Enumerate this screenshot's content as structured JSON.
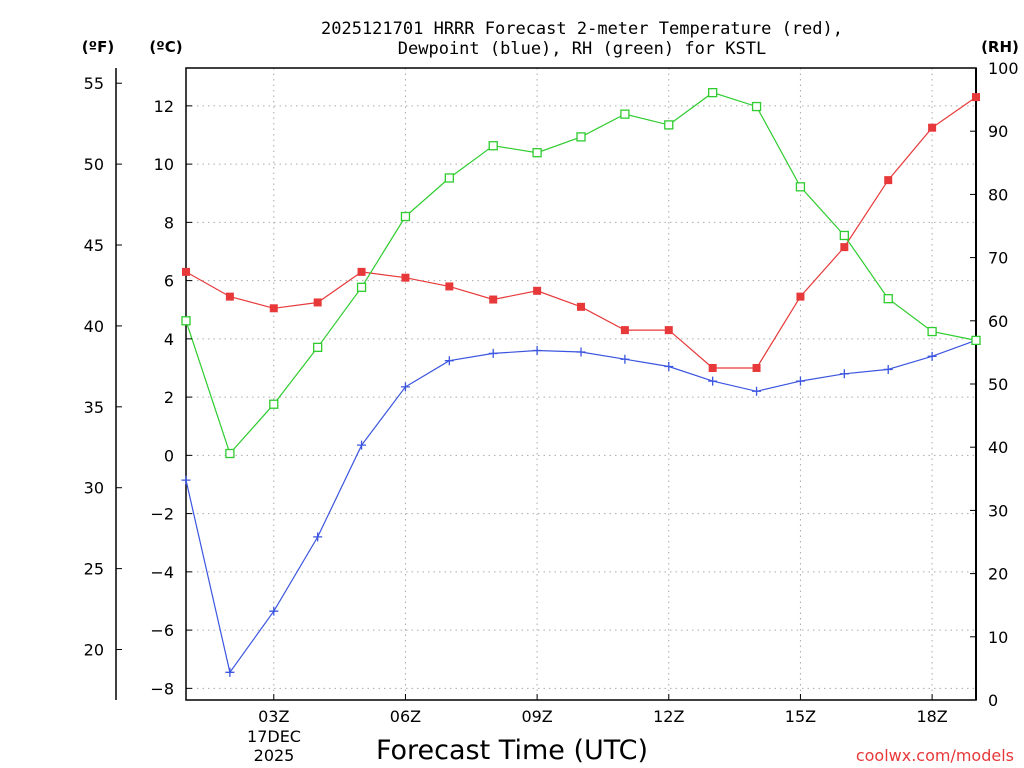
{
  "chart_data": {
    "type": "line",
    "title": [
      "2025121701 HRRR Forecast 2-meter Temperature (red),",
      "Dewpoint (blue), RH (green) for KSTL"
    ],
    "xlabel": "Forecast Time (UTC)",
    "date_label": [
      "17DEC",
      "2025"
    ],
    "credit": "coolwx.com/models",
    "units": {
      "fahrenheit": "(ºF)",
      "celsius": "(ºC)",
      "rh": "(RH)"
    },
    "x_hours": [
      1,
      2,
      3,
      4,
      5,
      6,
      7,
      8,
      9,
      10,
      11,
      12,
      13,
      14,
      15,
      16,
      17,
      18,
      19
    ],
    "x_ticks": [
      {
        "hour": 3,
        "label": "03Z"
      },
      {
        "hour": 6,
        "label": "06Z"
      },
      {
        "hour": 9,
        "label": "09Z"
      },
      {
        "hour": 12,
        "label": "12Z"
      },
      {
        "hour": 15,
        "label": "15Z"
      },
      {
        "hour": 18,
        "label": "18Z"
      }
    ],
    "xlim": [
      1,
      19
    ],
    "celsius_axis": {
      "ylim": [
        -8.4,
        13.3
      ],
      "ticks": [
        -8,
        -6,
        -4,
        -2,
        0,
        2,
        4,
        6,
        8,
        10,
        12
      ]
    },
    "fahrenheit_axis": {
      "ticks": [
        20,
        25,
        30,
        35,
        40,
        45,
        50,
        55
      ]
    },
    "rh_axis": {
      "ylim": [
        0,
        100
      ],
      "ticks": [
        0,
        10,
        20,
        30,
        40,
        50,
        60,
        70,
        80,
        90,
        100
      ]
    },
    "series": [
      {
        "name": "Temperature",
        "axis": "celsius",
        "color": "#e8393a",
        "marker": "filled-square",
        "values": [
          6.3,
          5.45,
          5.05,
          5.25,
          6.3,
          6.1,
          5.8,
          5.35,
          5.65,
          5.1,
          4.3,
          4.3,
          3.0,
          3.0,
          5.45,
          7.15,
          9.45,
          11.25,
          12.3
        ]
      },
      {
        "name": "Dewpoint",
        "axis": "celsius",
        "color": "#3b55e0",
        "marker": "plus",
        "values": [
          -0.85,
          -7.45,
          -5.35,
          -2.8,
          0.35,
          2.35,
          3.25,
          3.5,
          3.6,
          3.55,
          3.3,
          3.05,
          2.55,
          2.2,
          2.55,
          2.8,
          2.95,
          3.4,
          3.95
        ]
      },
      {
        "name": "RH",
        "axis": "rh",
        "color": "#2ecc2e",
        "marker": "open-square",
        "values": [
          60,
          39,
          46.8,
          55.8,
          65.3,
          76.5,
          82.6,
          87.7,
          86.6,
          89.1,
          92.7,
          91.0,
          96.1,
          93.9,
          81.2,
          73.5,
          63.5,
          58.3,
          56.9
        ]
      }
    ]
  }
}
